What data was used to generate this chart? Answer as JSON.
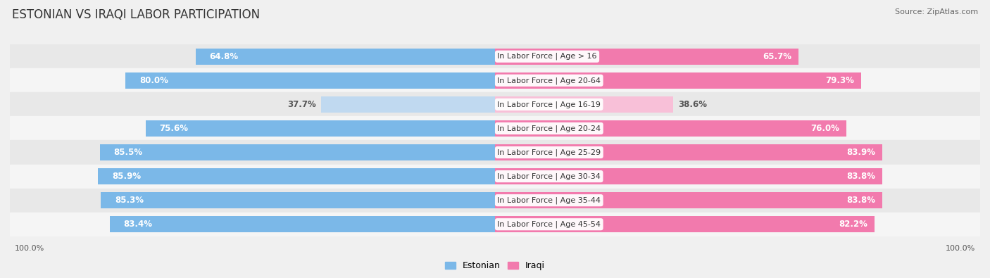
{
  "title": "ESTONIAN VS IRAQI LABOR PARTICIPATION",
  "source": "Source: ZipAtlas.com",
  "categories": [
    "In Labor Force | Age > 16",
    "In Labor Force | Age 20-64",
    "In Labor Force | Age 16-19",
    "In Labor Force | Age 20-24",
    "In Labor Force | Age 25-29",
    "In Labor Force | Age 30-34",
    "In Labor Force | Age 35-44",
    "In Labor Force | Age 45-54"
  ],
  "estonian_values": [
    64.8,
    80.0,
    37.7,
    75.6,
    85.5,
    85.9,
    85.3,
    83.4
  ],
  "iraqi_values": [
    65.7,
    79.3,
    38.6,
    76.0,
    83.9,
    83.8,
    83.8,
    82.2
  ],
  "estonian_color": "#7BB8E8",
  "iraqi_color": "#F27AAD",
  "estonian_light_color": "#C0D9F0",
  "iraqi_light_color": "#F8C0D8",
  "bar_height": 0.68,
  "background_color": "#f0f0f0",
  "row_colors": [
    "#e8e8e8",
    "#f5f5f5"
  ],
  "title_fontsize": 12,
  "value_fontsize": 8.5,
  "cat_fontsize": 8,
  "legend_fontsize": 9,
  "max_val": 100.0,
  "footer_fontsize": 8
}
